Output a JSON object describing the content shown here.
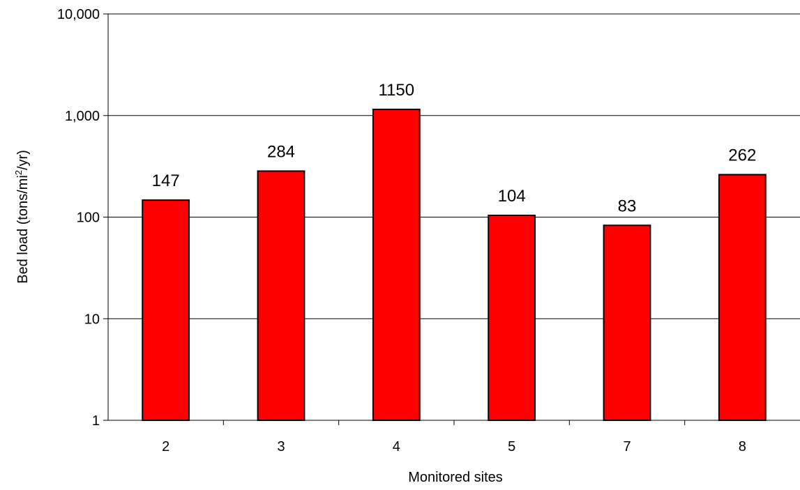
{
  "chart_data": {
    "type": "bar",
    "title": "",
    "xlabel": "Monitored sites",
    "ylabel": {
      "main": "Bed load (tons/mi",
      "superscript": "2",
      "suffix": "/yr)"
    },
    "yscale": "log",
    "ylim": [
      1,
      10000
    ],
    "yticks": [
      1,
      10,
      100,
      1000,
      10000
    ],
    "ytick_labels": [
      "1",
      "10",
      "100",
      "1,000",
      "10,000"
    ],
    "categories": [
      "2",
      "3",
      "4",
      "5",
      "7",
      "8"
    ],
    "values": [
      147,
      284,
      1150,
      104,
      83,
      262
    ],
    "data_labels": [
      "147",
      "284",
      "1150",
      "104",
      "83",
      "262"
    ],
    "bar_color": "#ff0000",
    "bar_edge_color": "#000000",
    "grid": true,
    "legend": "none"
  }
}
